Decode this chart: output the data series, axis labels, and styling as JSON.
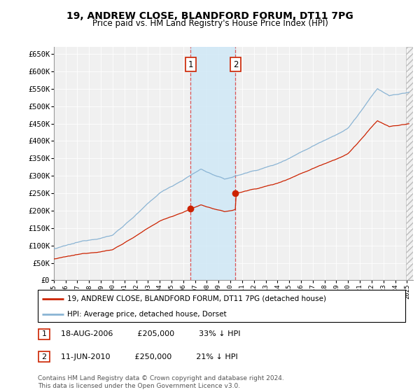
{
  "title": "19, ANDREW CLOSE, BLANDFORD FORUM, DT11 7PG",
  "subtitle": "Price paid vs. HM Land Registry's House Price Index (HPI)",
  "ytick_values": [
    0,
    50000,
    100000,
    150000,
    200000,
    250000,
    300000,
    350000,
    400000,
    450000,
    500000,
    550000,
    600000,
    650000
  ],
  "ylabel_ticks": [
    "£0",
    "£50K",
    "£100K",
    "£150K",
    "£200K",
    "£250K",
    "£300K",
    "£350K",
    "£400K",
    "£450K",
    "£500K",
    "£550K",
    "£600K",
    "£650K"
  ],
  "ylim": [
    0,
    670000
  ],
  "xlim_start": 1995.0,
  "xlim_end": 2025.5,
  "hpi_color": "#8ab4d4",
  "price_color": "#cc2200",
  "sale1_date": 2006.625,
  "sale1_price": 205000,
  "sale1_label": "1",
  "sale2_date": 2010.44,
  "sale2_price": 250000,
  "sale2_label": "2",
  "shade_start": 2006.625,
  "shade_end": 2010.44,
  "hatch_start": 2024.9,
  "legend_line1": "19, ANDREW CLOSE, BLANDFORD FORUM, DT11 7PG (detached house)",
  "legend_line2": "HPI: Average price, detached house, Dorset",
  "table_label1": "1",
  "table_date1": "18-AUG-2006",
  "table_price1": "£205,000",
  "table_pct1": "33% ↓ HPI",
  "table_label2": "2",
  "table_date2": "11-JUN-2010",
  "table_price2": "£250,000",
  "table_pct2": "21% ↓ HPI",
  "footnote_line1": "Contains HM Land Registry data © Crown copyright and database right 2024.",
  "footnote_line2": "This data is licensed under the Open Government Licence v3.0.",
  "background_color": "#ffffff",
  "plot_bg_color": "#f0f0f0"
}
